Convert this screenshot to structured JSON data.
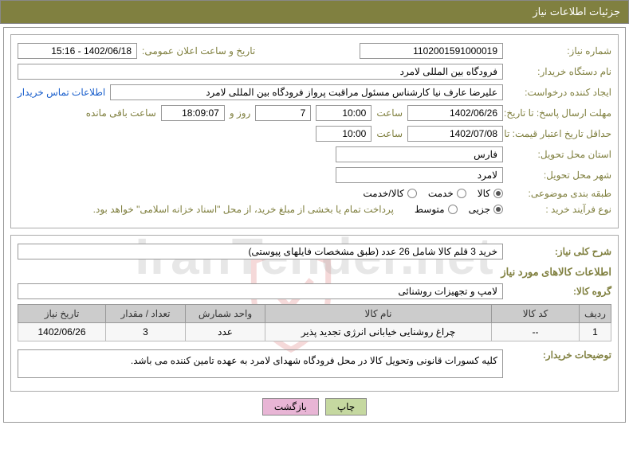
{
  "header": {
    "title": "جزئیات اطلاعات نیاز"
  },
  "fields": {
    "need_no_label": "شماره نیاز:",
    "need_no": "1102001591000019",
    "announce_label": "تاریخ و ساعت اعلان عمومی:",
    "announce_value": "1402/06/18 - 15:16",
    "buyer_org_label": "نام دستگاه خریدار:",
    "buyer_org": "فرودگاه بین المللی لامرد",
    "requester_label": "ایجاد کننده درخواست:",
    "requester": "علیرضا عارف نیا کارشناس مسئول مراقبت پرواز فرودگاه بین المللی لامرد",
    "contact_link": "اطلاعات تماس خریدار",
    "reply_deadline_label": "مهلت ارسال پاسخ: تا تاریخ:",
    "reply_date": "1402/06/26",
    "time_label": "ساعت",
    "reply_time": "10:00",
    "days": "7",
    "days_suffix": "روز و",
    "remain_time": "18:09:07",
    "remain_suffix": "ساعت باقی مانده",
    "price_valid_label": "حداقل تاریخ اعتبار قیمت: تا تاریخ:",
    "price_valid_date": "1402/07/08",
    "price_valid_time": "10:00",
    "province_label": "استان محل تحویل:",
    "province": "فارس",
    "city_label": "شهر محل تحویل:",
    "city": "لامرد",
    "category_label": "طبقه بندی موضوعی:",
    "cat_goods": "کالا",
    "cat_service": "خدمت",
    "cat_both": "کالا/خدمت",
    "process_label": "نوع فرآیند خرید :",
    "proc_partial": "جزیی",
    "proc_medium": "متوسط",
    "process_note": "پرداخت تمام یا بخشی از مبلغ خرید، از محل \"اسناد خزانه اسلامی\" خواهد بود.",
    "desc_label": "شرح کلی نیاز:",
    "desc_value": "خرید 3 قلم کالا شامل 26 عدد (طبق مشخصات فایلهای پیوستی)",
    "items_header": "اطلاعات کالاهای مورد نیاز",
    "group_label": "گروه کالا:",
    "group_value": "لامپ و تجهیزات روشنائی",
    "buyer_notes_label": "توضیحات خریدار:",
    "buyer_notes": "کلیه کسورات قانونی وتحویل کالا در محل فرودگاه شهدای لامرد به عهده تامین کننده می باشد."
  },
  "table": {
    "columns": [
      "ردیف",
      "کد کالا",
      "نام کالا",
      "واحد شمارش",
      "تعداد / مقدار",
      "تاریخ نیاز"
    ],
    "rows": [
      [
        "1",
        "--",
        "چراغ روشنایی خیابانی انرژی تجدید پذیر",
        "عدد",
        "3",
        "1402/06/26"
      ]
    ],
    "col_widths": [
      "40px",
      "110px",
      "auto",
      "100px",
      "100px",
      "110px"
    ]
  },
  "buttons": {
    "print": "چاپ",
    "back": "بازگشت"
  },
  "watermark": {
    "text": "IranTender.net"
  },
  "colors": {
    "olive": "#808040",
    "border": "#999999",
    "th_bg": "#cccccc"
  }
}
